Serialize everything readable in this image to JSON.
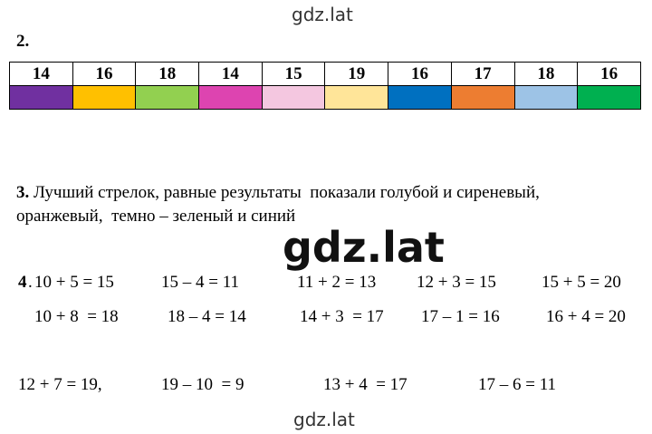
{
  "watermark_top": "gdz.lat",
  "task2": {
    "label": "2.",
    "numbers": [
      14,
      16,
      18,
      14,
      15,
      19,
      16,
      17,
      18,
      16
    ],
    "colors": [
      "#7030a0",
      "#ffc000",
      "#92d050",
      "#dd44b0",
      "#f4c7e0",
      "#ffe599",
      "#0070c0",
      "#ed7d31",
      "#9dc3e6",
      "#00b050"
    ]
  },
  "task3": {
    "label": "3.",
    "lines": [
      "Лучший стрелок, равные результаты  показали голубой и сиреневый,",
      "оранжевый,  темно – зеленый и синий"
    ]
  },
  "watermark_middle": "gdz.lat",
  "task4": {
    "label": "4",
    "rows": [
      [
        "10 + 5 = 15",
        "15 – 4 = 11",
        "11 + 2 = 13",
        "12 + 3 = 15",
        "15 + 5 = 20"
      ],
      [
        "10 + 8  = 18",
        "18 – 4 = 14",
        "14 + 3  = 17",
        "17 – 1 = 16",
        "16 + 4 = 20"
      ],
      [
        "12 + 7 = 19,",
        "19 – 10  = 9",
        "13 + 4  = 17",
        "17 – 6 = 11"
      ]
    ]
  },
  "watermark_bottom": "gdz.lat"
}
